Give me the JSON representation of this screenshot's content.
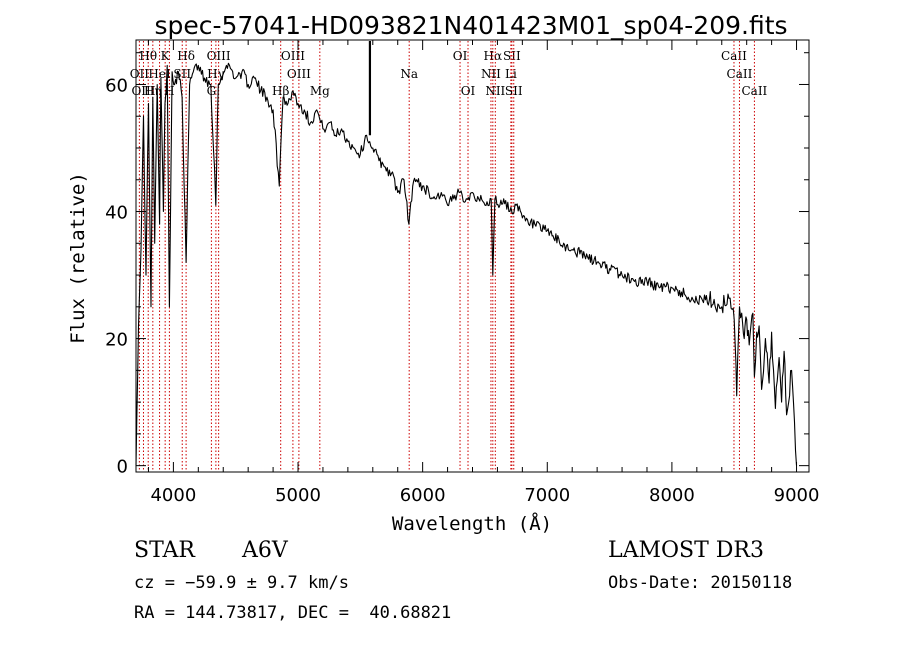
{
  "chart_data": {
    "type": "line",
    "title": "spec-57041-HD093821N401423M01_sp04-209.fits",
    "xlabel": "Wavelength (Å)",
    "ylabel": "Flux (relative)",
    "xlim": [
      3700,
      9100
    ],
    "ylim": [
      -1,
      67
    ],
    "xticks": [
      4000,
      5000,
      6000,
      7000,
      8000,
      9000
    ],
    "yticks": [
      0,
      20,
      40,
      60
    ],
    "grid": false,
    "series": [
      {
        "name": "flux",
        "x": [
          3700,
          3720,
          3740,
          3760,
          3780,
          3800,
          3820,
          3835,
          3850,
          3870,
          3889,
          3900,
          3920,
          3933,
          3950,
          3968,
          3990,
          4010,
          4040,
          4070,
          4102,
          4130,
          4160,
          4200,
          4250,
          4300,
          4330,
          4340,
          4360,
          4400,
          4450,
          4500,
          4550,
          4600,
          4650,
          4700,
          4750,
          4800,
          4850,
          4861,
          4880,
          4920,
          4960,
          5000,
          5050,
          5100,
          5150,
          5200,
          5250,
          5300,
          5350,
          5400,
          5450,
          5500,
          5550,
          5575,
          5600,
          5650,
          5700,
          5750,
          5800,
          5850,
          5890,
          5920,
          5950,
          6000,
          6050,
          6100,
          6150,
          6200,
          6250,
          6300,
          6350,
          6400,
          6450,
          6500,
          6550,
          6563,
          6580,
          6620,
          6650,
          6700,
          6750,
          6800,
          6850,
          6900,
          6950,
          7000,
          7100,
          7200,
          7300,
          7400,
          7500,
          7600,
          7700,
          7800,
          7900,
          8000,
          8100,
          8200,
          8300,
          8400,
          8450,
          8500,
          8520,
          8542,
          8560,
          8580,
          8600,
          8620,
          8650,
          8662,
          8680,
          8700,
          8720,
          8750,
          8780,
          8800,
          8830,
          8860,
          8880,
          8900,
          8920,
          8960,
          9000
        ],
        "values": [
          0,
          22,
          34,
          55,
          30,
          57,
          25,
          58,
          35,
          60,
          38,
          61,
          40,
          57,
          63,
          25,
          62,
          60,
          62,
          58,
          32,
          60,
          62,
          63,
          61,
          60,
          47,
          41,
          60,
          62,
          63,
          61,
          62,
          60,
          61,
          59,
          58,
          56,
          44,
          50,
          58,
          57,
          59,
          57,
          56,
          54,
          56,
          53,
          54,
          52,
          53,
          51,
          50,
          49,
          52,
          51,
          50,
          48,
          47,
          46,
          43,
          45,
          38,
          44,
          45,
          44,
          43,
          42,
          43,
          41,
          42,
          43,
          42,
          43,
          42,
          41,
          42,
          30,
          42,
          41,
          42,
          40,
          41,
          39,
          38,
          38,
          37,
          37,
          35,
          34,
          33,
          32,
          31,
          30,
          29,
          29,
          28,
          28,
          27,
          26,
          26,
          25,
          27,
          23,
          11,
          25,
          24,
          20,
          23,
          19,
          24,
          14,
          21,
          22,
          12,
          20,
          13,
          21,
          9,
          17,
          10,
          18,
          8,
          15,
          0
        ]
      }
    ],
    "line_markers": [
      {
        "label": "Hθ",
        "x": 3798,
        "row": 1
      },
      {
        "label": "K",
        "x": 3934,
        "row": 1
      },
      {
        "label": "Hδ",
        "x": 4102,
        "row": 1
      },
      {
        "label": "OIII",
        "x": 4363,
        "row": 1
      },
      {
        "label": "OIII",
        "x": 4959,
        "row": 1
      },
      {
        "label": "OI",
        "x": 6300,
        "row": 1
      },
      {
        "label": "Hα",
        "x": 6563,
        "row": 1
      },
      {
        "label": "SII",
        "x": 6716,
        "row": 1
      },
      {
        "label": "CaII",
        "x": 8498,
        "row": 1
      },
      {
        "label": "OII",
        "x": 3727,
        "row": 2
      },
      {
        "label": "HeI",
        "x": 3889,
        "row": 2
      },
      {
        "label": "SII",
        "x": 4071,
        "row": 2
      },
      {
        "label": "Hγ",
        "x": 4341,
        "row": 2
      },
      {
        "label": "OIII",
        "x": 5007,
        "row": 2
      },
      {
        "label": "Na",
        "x": 5892,
        "row": 2
      },
      {
        "label": "NII",
        "x": 6548,
        "row": 2
      },
      {
        "label": "Li",
        "x": 6708,
        "row": 2
      },
      {
        "label": "CaII",
        "x": 8542,
        "row": 2
      },
      {
        "label": "OIII",
        "x": 3760,
        "row": 3
      },
      {
        "label": "Hη",
        "x": 3835,
        "row": 3
      },
      {
        "label": "H",
        "x": 3968,
        "row": 3
      },
      {
        "label": "G",
        "x": 4305,
        "row": 3
      },
      {
        "label": "Hβ",
        "x": 4861,
        "row": 3
      },
      {
        "label": "Mg",
        "x": 5175,
        "row": 3
      },
      {
        "label": "OI",
        "x": 6364,
        "row": 3
      },
      {
        "label": "NII",
        "x": 6583,
        "row": 3
      },
      {
        "label": "SII",
        "x": 6731,
        "row": 3
      },
      {
        "label": "CaII",
        "x": 8662,
        "row": 3
      }
    ],
    "spike_x": 5577
  },
  "info": {
    "object_class": "STAR",
    "subclass": "A6V",
    "survey": "LAMOST DR3",
    "cz": "cz = −59.9 ± 9.7 km/s",
    "obs_date": "Obs-Date: 20150118",
    "radec": "RA = 144.73817, DEC =  40.68821"
  }
}
